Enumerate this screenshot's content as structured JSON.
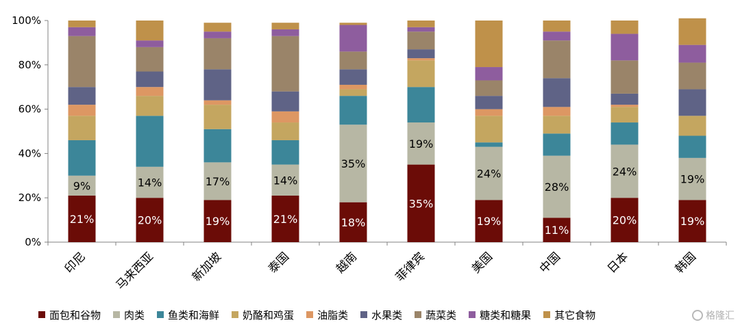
{
  "chart_data": {
    "type": "stacked-bar",
    "categories": [
      "印尼",
      "马来西亚",
      "新加坡",
      "泰国",
      "越南",
      "菲律宾",
      "美国",
      "中国",
      "日本",
      "韩国"
    ],
    "ylim": [
      0,
      100
    ],
    "yticks": [
      "0%",
      "20%",
      "40%",
      "60%",
      "80%",
      "100%"
    ],
    "grid": false,
    "legend_position": "bottom",
    "series": [
      {
        "name": "面包和谷物",
        "color": "#6b0c07",
        "labelColor": "#ffffff",
        "values": [
          21,
          20,
          19,
          21,
          18,
          35,
          19,
          11,
          20,
          19
        ],
        "labels": [
          "21%",
          "20%",
          "19%",
          "21%",
          "18%",
          "35%",
          "19%",
          "11%",
          "20%",
          "19%"
        ]
      },
      {
        "name": "肉类",
        "color": "#b7b7a4",
        "labelColor": "#000000",
        "values": [
          9,
          14,
          17,
          14,
          35,
          19,
          24,
          28,
          24,
          19
        ],
        "labels": [
          "9%",
          "14%",
          "17%",
          "14%",
          "35%",
          "19%",
          "24%",
          "28%",
          "24%",
          "19%"
        ]
      },
      {
        "name": "鱼类和海鲜",
        "color": "#3c8699",
        "values": [
          16,
          23,
          15,
          11,
          13,
          16,
          2,
          10,
          10,
          10
        ]
      },
      {
        "name": "奶酪和鸡蛋",
        "color": "#c4a660",
        "values": [
          11,
          9,
          11,
          8,
          3,
          12,
          12,
          8,
          7,
          9
        ]
      },
      {
        "name": "油脂类",
        "color": "#dd9763",
        "values": [
          5,
          4,
          2,
          5,
          2,
          1,
          3,
          4,
          1,
          0
        ]
      },
      {
        "name": "水果类",
        "color": "#5f6386",
        "values": [
          8,
          7,
          14,
          9,
          7,
          4,
          6,
          13,
          5,
          12
        ]
      },
      {
        "name": "蔬菜类",
        "color": "#9a8469",
        "values": [
          23,
          11,
          14,
          25,
          8,
          8,
          7,
          17,
          15,
          12
        ]
      },
      {
        "name": "糖类和糖果",
        "color": "#8e5d9e",
        "values": [
          4,
          3,
          3,
          3,
          12,
          2,
          6,
          4,
          12,
          8
        ]
      },
      {
        "name": "其它食物",
        "color": "#bf914a",
        "values": [
          3,
          9,
          4,
          3,
          1,
          3,
          21,
          5,
          6,
          12
        ]
      }
    ]
  },
  "watermark": "格隆汇"
}
